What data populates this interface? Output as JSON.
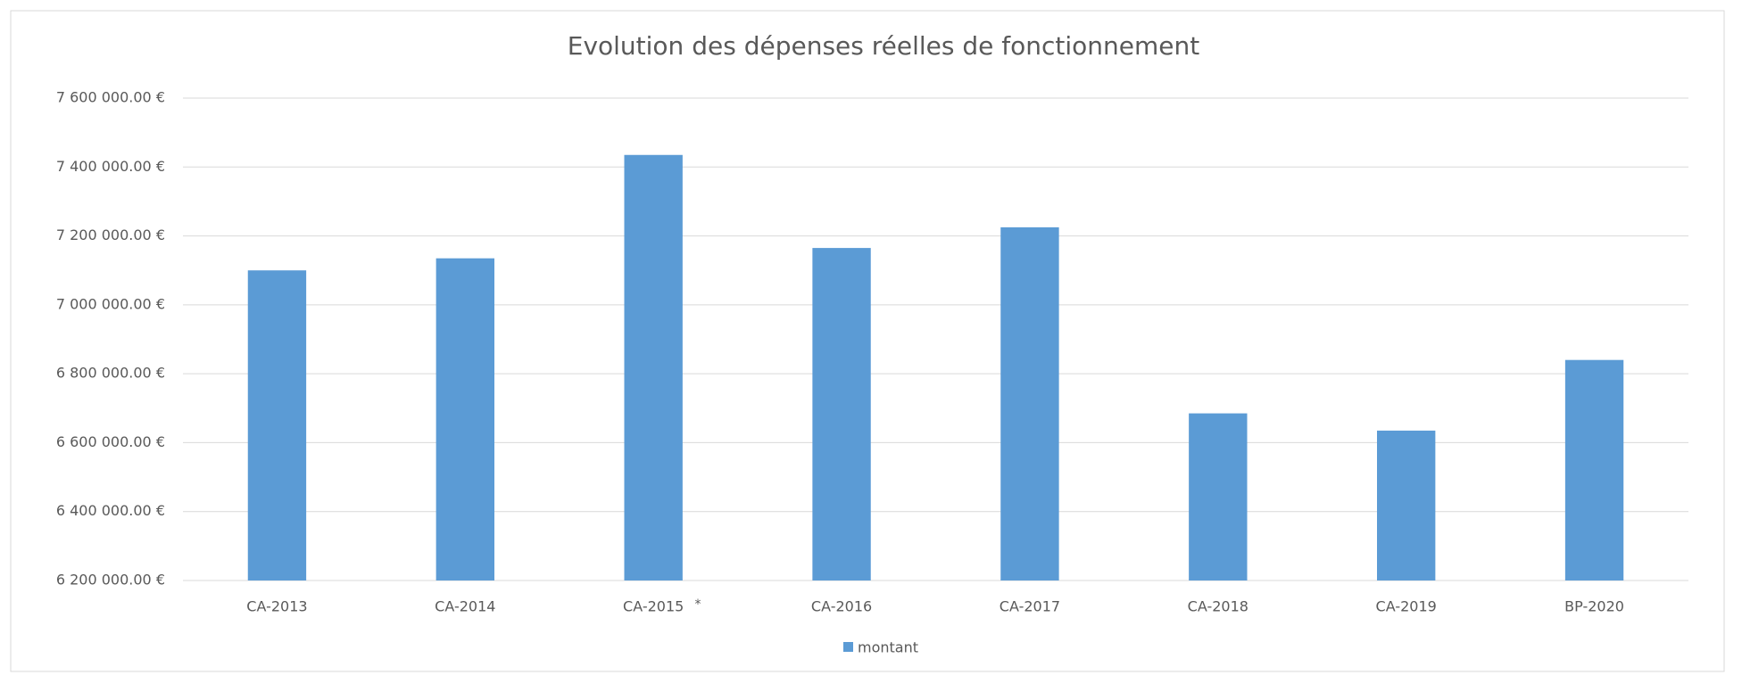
{
  "chart_data": {
    "type": "bar",
    "title": "Evolution des dépenses réelles de fonctionnement",
    "categories": [
      "CA-2013",
      "CA-2014",
      "CA-2015",
      "CA-2016",
      "CA-2017",
      "CA-2018",
      "CA-2019",
      "BP-2020"
    ],
    "series": [
      {
        "name": "montant",
        "color": "#5b9bd5",
        "values": [
          7100000,
          7135000,
          7435000,
          7165000,
          7225000,
          6685000,
          6635000,
          6840000
        ]
      }
    ],
    "ylim": [
      6200000,
      7600000
    ],
    "yticks": [
      {
        "value": 6200000,
        "label": "6 200 000.00 €"
      },
      {
        "value": 6400000,
        "label": "6 400 000.00 €"
      },
      {
        "value": 6600000,
        "label": "6 600 000.00 €"
      },
      {
        "value": 6800000,
        "label": "6 800 000.00 €"
      },
      {
        "value": 7000000,
        "label": "7 000 000.00 €"
      },
      {
        "value": 7200000,
        "label": "7 200 000.00 €"
      },
      {
        "value": 7400000,
        "label": "7 400 000.00 €"
      },
      {
        "value": 7600000,
        "label": "7 600 000.00 €"
      }
    ],
    "grid": true,
    "legend": "bottom",
    "annotations": [
      "*"
    ]
  }
}
